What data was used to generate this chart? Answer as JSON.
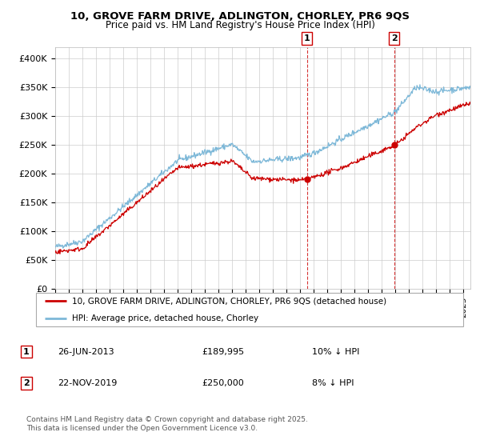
{
  "title_line1": "10, GROVE FARM DRIVE, ADLINGTON, CHORLEY, PR6 9QS",
  "title_line2": "Price paid vs. HM Land Registry's House Price Index (HPI)",
  "legend_line1": "10, GROVE FARM DRIVE, ADLINGTON, CHORLEY, PR6 9QS (detached house)",
  "legend_line2": "HPI: Average price, detached house, Chorley",
  "footer": "Contains HM Land Registry data © Crown copyright and database right 2025.\nThis data is licensed under the Open Government Licence v3.0.",
  "annotation1_label": "1",
  "annotation1_date": "26-JUN-2013",
  "annotation1_price": "£189,995",
  "annotation1_hpi": "10% ↓ HPI",
  "annotation2_label": "2",
  "annotation2_date": "22-NOV-2019",
  "annotation2_price": "£250,000",
  "annotation2_hpi": "8% ↓ HPI",
  "hpi_color": "#7db8d8",
  "price_color": "#cc0000",
  "vline_color": "#cc0000",
  "background_color": "#ffffff",
  "grid_color": "#cccccc",
  "ylim": [
    0,
    420000
  ],
  "yticks": [
    0,
    50000,
    100000,
    150000,
    200000,
    250000,
    300000,
    350000,
    400000
  ],
  "ytick_labels": [
    "£0",
    "£50K",
    "£100K",
    "£150K",
    "£200K",
    "£250K",
    "£300K",
    "£350K",
    "£400K"
  ],
  "sale1_x": 2013.49,
  "sale1_y": 189995,
  "sale2_x": 2019.9,
  "sale2_y": 250000,
  "xmin": 1995,
  "xmax": 2025.5
}
